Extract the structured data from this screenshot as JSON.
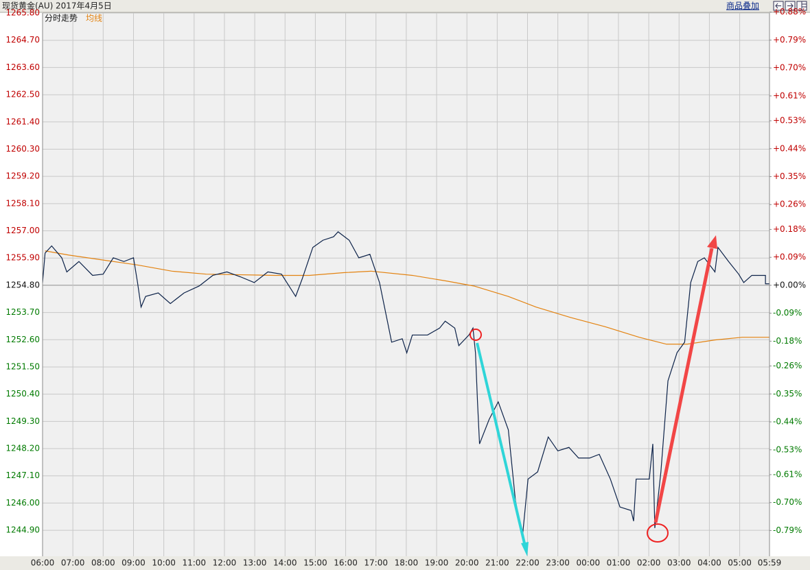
{
  "chart_data": {
    "type": "line",
    "title": "现货黄金(AU)",
    "subtitle": "2017年4月5日",
    "xlim": [
      0,
      1439
    ],
    "xticks": [
      {
        "value": 0,
        "label": "06:00"
      },
      {
        "value": 60,
        "label": "07:00"
      },
      {
        "value": 120,
        "label": "08:00"
      },
      {
        "value": 180,
        "label": "09:00"
      },
      {
        "value": 240,
        "label": "10:00"
      },
      {
        "value": 300,
        "label": "11:00"
      },
      {
        "value": 360,
        "label": "12:00"
      },
      {
        "value": 420,
        "label": "13:00"
      },
      {
        "value": 480,
        "label": "14:00"
      },
      {
        "value": 540,
        "label": "15:00"
      },
      {
        "value": 600,
        "label": "16:00"
      },
      {
        "value": 660,
        "label": "17:00"
      },
      {
        "value": 720,
        "label": "18:00"
      },
      {
        "value": 780,
        "label": "19:00"
      },
      {
        "value": 840,
        "label": "20:00"
      },
      {
        "value": 900,
        "label": "21:00"
      },
      {
        "value": 960,
        "label": "22:00"
      },
      {
        "value": 1020,
        "label": "23:00"
      },
      {
        "value": 1080,
        "label": "00:00"
      },
      {
        "value": 1140,
        "label": "01:00"
      },
      {
        "value": 1200,
        "label": "02:00"
      },
      {
        "value": 1260,
        "label": "03:00"
      },
      {
        "value": 1320,
        "label": "04:00"
      },
      {
        "value": 1380,
        "label": "05:00"
      },
      {
        "value": 1439,
        "label": "05:59"
      }
    ],
    "ylim": [
      1243.85,
      1265.8
    ],
    "yticks": [
      {
        "value": 1265.8,
        "label": "1265.80"
      },
      {
        "value": 1264.7,
        "label": "1264.70"
      },
      {
        "value": 1263.6,
        "label": "1263.60"
      },
      {
        "value": 1262.5,
        "label": "1262.50"
      },
      {
        "value": 1261.4,
        "label": "1261.40"
      },
      {
        "value": 1260.3,
        "label": "1260.30"
      },
      {
        "value": 1259.2,
        "label": "1259.20"
      },
      {
        "value": 1258.1,
        "label": "1258.10"
      },
      {
        "value": 1257,
        "label": "1257.00"
      },
      {
        "value": 1255.9,
        "label": "1255.90"
      },
      {
        "value": 1254.8,
        "label": "1254.80"
      },
      {
        "value": 1253.7,
        "label": "1253.70"
      },
      {
        "value": 1252.6,
        "label": "1252.60"
      },
      {
        "value": 1251.5,
        "label": "1251.50"
      },
      {
        "value": 1250.4,
        "label": "1250.40"
      },
      {
        "value": 1249.3,
        "label": "1249.30"
      },
      {
        "value": 1248.2,
        "label": "1248.20"
      },
      {
        "value": 1247.1,
        "label": "1247.10"
      },
      {
        "value": 1246,
        "label": "1246.00"
      },
      {
        "value": 1244.9,
        "label": "1244.90"
      }
    ],
    "y2lim": [
      -0.873,
      0.877
    ],
    "y2ticks": [
      {
        "value": 0.88,
        "label": "+0.88%"
      },
      {
        "value": 0.79,
        "label": "+0.79%"
      },
      {
        "value": 0.7,
        "label": "+0.70%"
      },
      {
        "value": 0.61,
        "label": "+0.61%"
      },
      {
        "value": 0.53,
        "label": "+0.53%"
      },
      {
        "value": 0.44,
        "label": "+0.44%"
      },
      {
        "value": 0.35,
        "label": "+0.35%"
      },
      {
        "value": 0.26,
        "label": "+0.26%"
      },
      {
        "value": 0.18,
        "label": "+0.18%"
      },
      {
        "value": 0.09,
        "label": "+0.09%"
      },
      {
        "value": 0,
        "label": "+0.00%"
      },
      {
        "value": -0.09,
        "label": "-0.09%"
      },
      {
        "value": -0.18,
        "label": "-0.18%"
      },
      {
        "value": -0.26,
        "label": "-0.26%"
      },
      {
        "value": -0.35,
        "label": "-0.35%"
      },
      {
        "value": -0.44,
        "label": "-0.44%"
      },
      {
        "value": -0.53,
        "label": "-0.53%"
      },
      {
        "value": -0.61,
        "label": "-0.61%"
      },
      {
        "value": -0.7,
        "label": "-0.70%"
      },
      {
        "value": -0.79,
        "label": "-0.79%"
      }
    ],
    "grid": true,
    "series": [
      {
        "name": "分时走势",
        "color": "#0b2148",
        "x": [
          0,
          5,
          18,
          38,
          48,
          72,
          99,
          120,
          140,
          161,
          180,
          188,
          195,
          204,
          229,
          253,
          280,
          310,
          337,
          365,
          392,
          419,
          446,
          473,
          501,
          514,
          535,
          555,
          576,
          585,
          607,
          626,
          648,
          667,
          684,
          691,
          712,
          721,
          732,
          762,
          786,
          797,
          816,
          824,
          844,
          852,
          857,
          861,
          865,
          884,
          902,
          922,
          936,
          950,
          961,
          980,
          1001,
          1020,
          1042,
          1061,
          1083,
          1102,
          1124,
          1143,
          1165,
          1170,
          1175,
          1201,
          1208,
          1212,
          1224,
          1238,
          1256,
          1271,
          1283,
          1297,
          1310,
          1331,
          1337,
          1358,
          1378,
          1388,
          1404,
          1431,
          1431,
          1439
        ],
        "values": [
          1254.91,
          1256.1,
          1256.39,
          1255.91,
          1255.34,
          1255.76,
          1255.2,
          1255.25,
          1255.91,
          1255.76,
          1255.91,
          1254.91,
          1253.92,
          1254.35,
          1254.49,
          1254.06,
          1254.49,
          1254.77,
          1255.2,
          1255.34,
          1255.14,
          1254.91,
          1255.34,
          1255.25,
          1254.35,
          1255.06,
          1256.33,
          1256.62,
          1256.76,
          1256.96,
          1256.62,
          1255.91,
          1256.05,
          1254.91,
          1253.21,
          1252.5,
          1252.64,
          1252.07,
          1252.79,
          1252.79,
          1253.07,
          1253.35,
          1253.07,
          1252.36,
          1252.79,
          1253.07,
          1252.07,
          1250.09,
          1248.39,
          1249.38,
          1250.09,
          1248.96,
          1246.12,
          1244.65,
          1246.97,
          1247.26,
          1248.67,
          1248.11,
          1248.25,
          1247.82,
          1247.82,
          1247.97,
          1246.97,
          1245.84,
          1245.7,
          1245.27,
          1246.97,
          1246.97,
          1248.39,
          1244.99,
          1247.26,
          1250.94,
          1252.08,
          1252.5,
          1254.91,
          1255.76,
          1255.91,
          1255.34,
          1256.33,
          1255.76,
          1255.25,
          1254.91,
          1255.2,
          1255.2,
          1254.86,
          1254.86
        ]
      },
      {
        "name": "均线",
        "color": "#e3820f",
        "x": [
          5,
          52,
          120,
          188,
          256,
          324,
          460,
          528,
          596,
          650,
          732,
          800,
          854,
          922,
          977,
          1045,
          1113,
          1181,
          1235,
          1276,
          1331,
          1385,
          1439
        ],
        "values": [
          1256.19,
          1256.02,
          1255.82,
          1255.62,
          1255.37,
          1255.25,
          1255.2,
          1255.2,
          1255.31,
          1255.37,
          1255.2,
          1254.97,
          1254.77,
          1254.35,
          1253.92,
          1253.5,
          1253.13,
          1252.7,
          1252.42,
          1252.42,
          1252.59,
          1252.7,
          1252.7
        ]
      }
    ]
  },
  "toolbar": {
    "link": "商品叠加"
  }
}
